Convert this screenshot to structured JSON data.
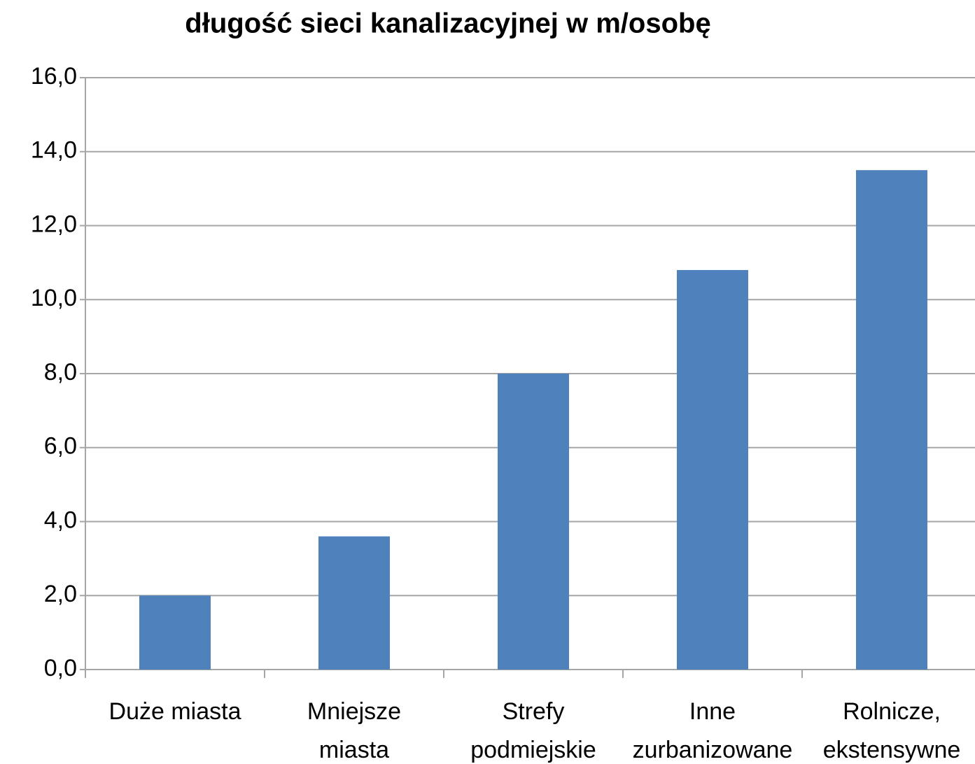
{
  "chart_data": {
    "type": "bar",
    "title": "długość sieci kanalizacyjnej w m/osobę",
    "categories": [
      "Duże miasta",
      "Mniejsze\nmiasta",
      "Strefy\npodmiejskie",
      "Inne\nzurbanizowane",
      "Rolnicze,\nekstensywne"
    ],
    "values": [
      2.0,
      3.6,
      8.0,
      10.8,
      13.5
    ],
    "color": "#4f81bd",
    "ylim": [
      0,
      16
    ],
    "yticks": [
      {
        "value": 0,
        "label": "0,0"
      },
      {
        "value": 2,
        "label": "2,0"
      },
      {
        "value": 4,
        "label": "4,0"
      },
      {
        "value": 6,
        "label": "6,0"
      },
      {
        "value": 8,
        "label": "8,0"
      },
      {
        "value": 10,
        "label": "10,0"
      },
      {
        "value": 12,
        "label": "12,0"
      },
      {
        "value": 14,
        "label": "14,0"
      },
      {
        "value": 16,
        "label": "16,0"
      }
    ],
    "grid": true
  }
}
